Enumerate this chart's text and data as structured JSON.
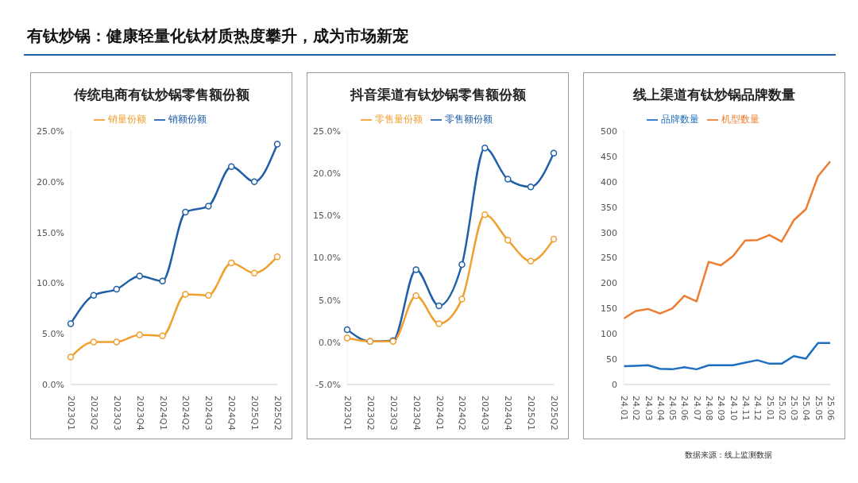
{
  "chart_data": [
    {
      "type": "other",
      "title": "有钛炒锅：健康轻量化钛材质热度攀升，成为市场新宠",
      "annotations": [
        "数据来源：线上监测数据"
      ]
    },
    {
      "type": "line",
      "title": "传统电商有钛炒锅零售额份额",
      "categories": [
        "2023Q1",
        "2023Q2",
        "2023Q3",
        "2023Q4",
        "2024Q1",
        "2024Q2",
        "2024Q3",
        "2024Q4",
        "2025Q1",
        "2025Q2"
      ],
      "series": [
        {
          "name": "销额份额",
          "color": "#1f5fa8",
          "values": [
            6.0,
            8.8,
            9.4,
            10.7,
            10.2,
            17.0,
            17.6,
            21.5,
            20.0,
            23.7
          ]
        },
        {
          "name": "销量份额",
          "color": "#f0a030",
          "values": [
            2.7,
            4.2,
            4.2,
            4.9,
            4.8,
            8.9,
            8.8,
            12.0,
            11.0,
            12.6
          ]
        }
      ],
      "ylim": [
        0,
        25
      ],
      "yticks": [
        {
          "value": 0,
          "label": "0.0%"
        },
        {
          "value": 5,
          "label": "5.0%"
        },
        {
          "value": 10,
          "label": "10.0%"
        },
        {
          "value": 15,
          "label": "15.0%"
        },
        {
          "value": 20,
          "label": "20.0%"
        },
        {
          "value": 25,
          "label": "25.0%"
        }
      ],
      "legend": "top",
      "marker": "circle"
    },
    {
      "type": "line",
      "title": "抖音渠道有钛炒锅零售额份额",
      "categories": [
        "2023Q1",
        "2023Q2",
        "2023Q3",
        "2023Q4",
        "2024Q1",
        "2024Q2",
        "2024Q3",
        "2024Q4",
        "2025Q1",
        "2025Q2"
      ],
      "series": [
        {
          "name": "零售额份额",
          "color": "#1f5fa8",
          "values": [
            1.5,
            0.1,
            0.2,
            8.6,
            4.3,
            9.2,
            23.0,
            19.3,
            18.4,
            22.4
          ]
        },
        {
          "name": "零售量份额",
          "color": "#f0a030",
          "values": [
            0.5,
            0.1,
            0.1,
            5.5,
            2.2,
            5.1,
            15.1,
            12.1,
            9.6,
            12.2
          ]
        }
      ],
      "ylim": [
        -5,
        25
      ],
      "yticks": [
        {
          "value": -5,
          "label": "-5.0%"
        },
        {
          "value": 0,
          "label": "0.0%"
        },
        {
          "value": 5,
          "label": "5.0%"
        },
        {
          "value": 10,
          "label": "10.0%"
        },
        {
          "value": 15,
          "label": "15.0%"
        },
        {
          "value": 20,
          "label": "20.0%"
        },
        {
          "value": 25,
          "label": "25.0%"
        }
      ],
      "legend": "top",
      "marker": "circle"
    },
    {
      "type": "line",
      "title": "线上渠道有钛炒锅品牌数量",
      "categories": [
        "24.01",
        "24.02",
        "24.03",
        "24.04",
        "24.05",
        "24.06",
        "24.07",
        "24.08",
        "24.09",
        "24.10",
        "24.11",
        "24.12",
        "25.01",
        "25.02",
        "25.03",
        "25.04",
        "25.05",
        "25.06"
      ],
      "series": [
        {
          "name": "品牌数量",
          "color": "#1f6fc0",
          "values": [
            36,
            37,
            38,
            31,
            30,
            34,
            30,
            38,
            38,
            38,
            43,
            48,
            41,
            41,
            56,
            51,
            82,
            82
          ]
        },
        {
          "name": "机型数量",
          "color": "#ed7d31",
          "values": [
            130,
            145,
            149,
            140,
            150,
            175,
            164,
            242,
            235,
            253,
            284,
            285,
            295,
            282,
            324,
            346,
            411,
            440
          ]
        }
      ],
      "ylim": [
        0,
        500
      ],
      "yticks": [
        0,
        50,
        100,
        150,
        200,
        250,
        300,
        350,
        400,
        450,
        500
      ],
      "legend": "top",
      "marker": "none"
    }
  ]
}
